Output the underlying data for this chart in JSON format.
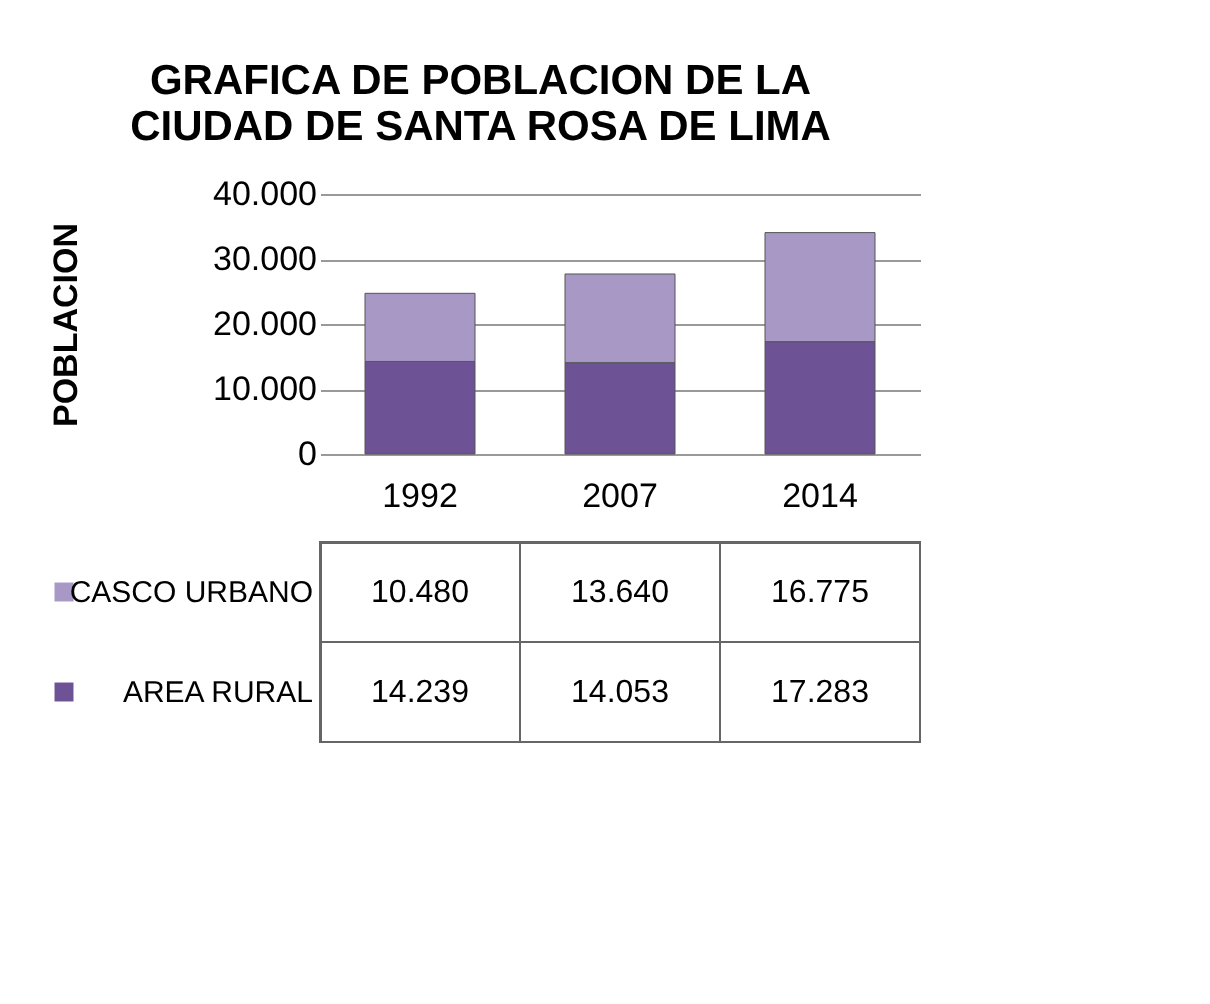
{
  "chart_data": {
    "type": "bar",
    "title": "GRAFICA DE POBLACION DE LA CIUDAD DE SANTA ROSA DE LIMA",
    "ylabel": "POBLACION",
    "categories": [
      "1992",
      "2007",
      "2014"
    ],
    "stacked": true,
    "series": [
      {
        "name": "AREA RURAL",
        "color": "#6e5296",
        "values": [
          14239,
          14053,
          17283
        ],
        "value_labels": [
          "14.239",
          "14.053",
          "17.283"
        ]
      },
      {
        "name": "CASCO URBANO",
        "color": "#a898c6",
        "values": [
          10480,
          13640,
          16775
        ],
        "value_labels": [
          "10.480",
          "13.640",
          "16.775"
        ]
      }
    ],
    "ylim": [
      0,
      40000
    ],
    "yticks": [
      {
        "value": 0,
        "label": "0"
      },
      {
        "value": 10000,
        "label": "10.000"
      },
      {
        "value": 20000,
        "label": "20.000"
      },
      {
        "value": 30000,
        "label": "30.000"
      },
      {
        "value": 40000,
        "label": "40.000"
      }
    ],
    "grid": "y",
    "legend": "bottom"
  }
}
